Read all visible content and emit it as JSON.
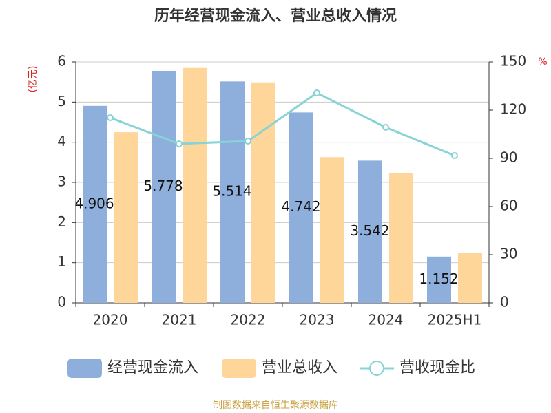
{
  "chart_data": {
    "type": "bar_line",
    "title": "历年经营现金流入、营业总收入情况",
    "y_label": "(亿元)",
    "y2_label": "%",
    "categories": [
      "2020",
      "2021",
      "2022",
      "2023",
      "2024",
      "2025H1"
    ],
    "series": [
      {
        "name": "经营现金流入",
        "type": "bar",
        "color": "#8eaedb",
        "values": [
          4.906,
          5.778,
          5.514,
          4.742,
          3.542,
          1.152
        ],
        "value_labels": [
          "4.906",
          "5.778",
          "5.514",
          "4.742",
          "3.542",
          "1.152"
        ]
      },
      {
        "name": "营业总收入",
        "type": "bar",
        "color": "#ffd699",
        "values": [
          4.25,
          5.85,
          5.49,
          3.63,
          3.24,
          1.25
        ]
      },
      {
        "name": "营收现金比",
        "type": "line",
        "axis": "y2",
        "color": "#87d3d6",
        "values": [
          115.3,
          99,
          100.7,
          130.7,
          109.3,
          91.7
        ]
      }
    ],
    "ylim": [
      0,
      6
    ],
    "yticks": [
      0,
      1,
      2,
      3,
      4,
      5,
      6
    ],
    "y2lim": [
      0,
      150
    ],
    "y2ticks": [
      0,
      30,
      60,
      90,
      120,
      150
    ],
    "grid": true,
    "source": "制图数据来自恒生聚源数据库"
  }
}
